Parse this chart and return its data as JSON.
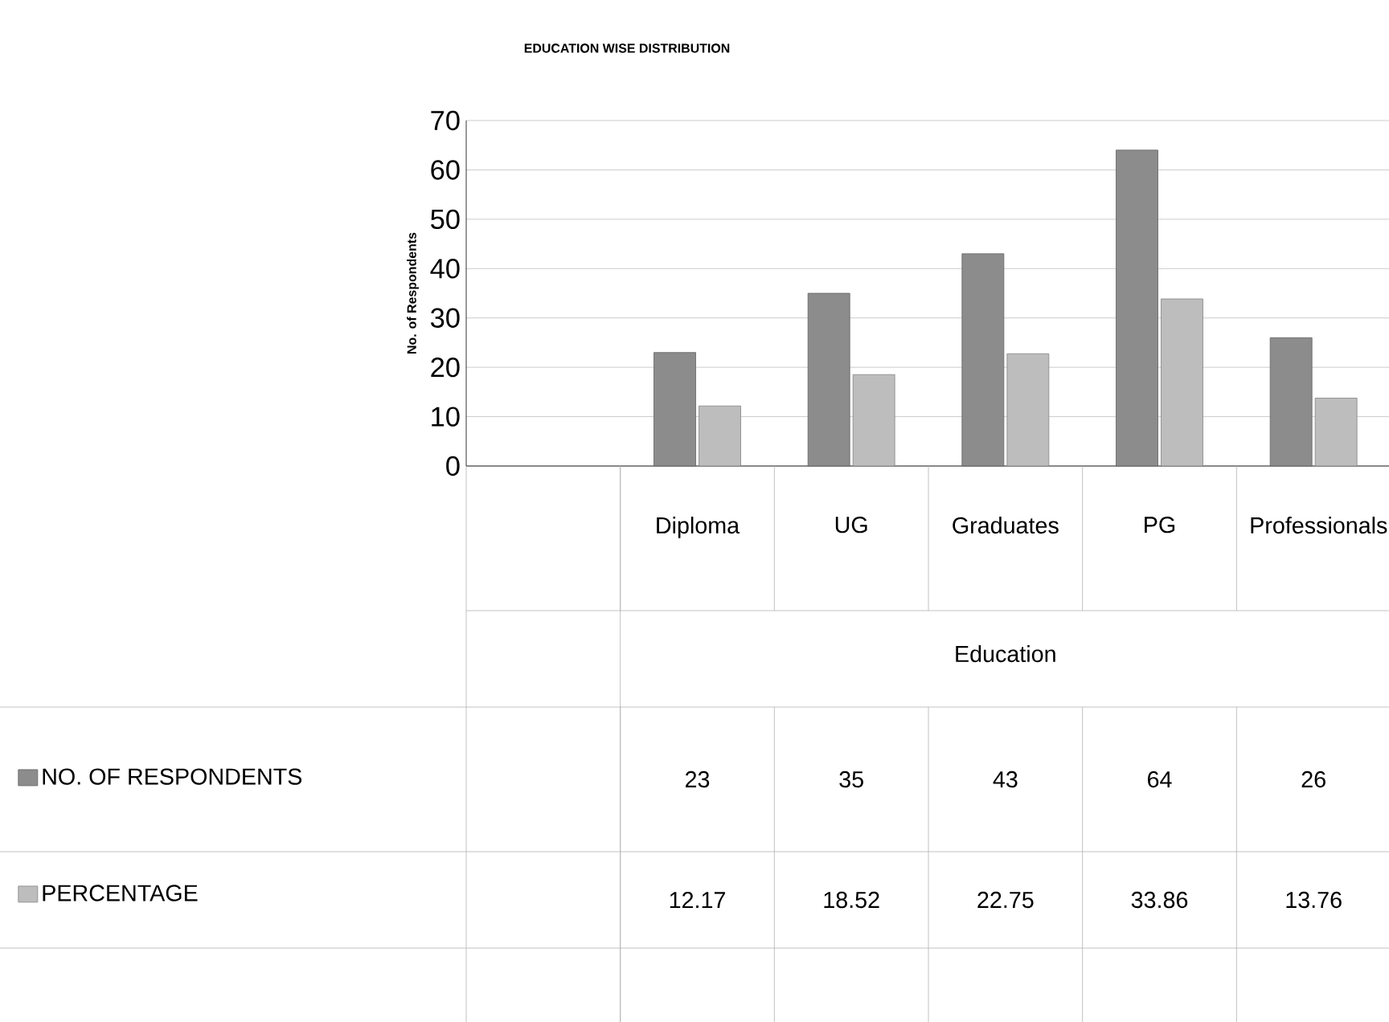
{
  "chart_data": {
    "type": "bar",
    "title": "EDUCATION WISE DISTRIBUTION",
    "xlabel": "Education",
    "ylabel": "No. of Respondents",
    "categories": [
      "Diploma",
      "UG",
      "Graduates",
      "PG",
      "Professionals"
    ],
    "series": [
      {
        "name": "NO. OF RESPONDENTS",
        "color": "#8c8c8c",
        "values": [
          23,
          35,
          43,
          64,
          26
        ]
      },
      {
        "name": "PERCENTAGE",
        "color": "#bdbdbd",
        "values": [
          12.17,
          18.52,
          22.75,
          33.86,
          13.76
        ]
      }
    ],
    "ylim": [
      0,
      70
    ],
    "yticks": [
      0,
      10,
      20,
      30,
      40,
      50,
      60,
      70
    ],
    "grid": "y",
    "legend": "bottom",
    "data_labels": true
  }
}
